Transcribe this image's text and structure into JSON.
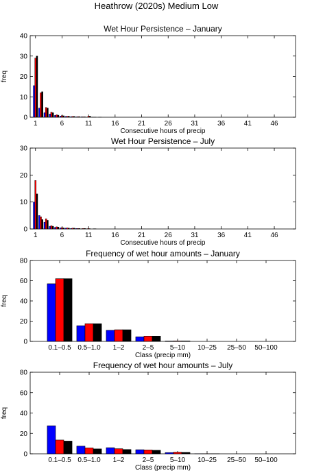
{
  "figure_title": "Heathrow (2020s) Medium Low",
  "chart_data": [
    {
      "type": "bar",
      "title": "Wet Hour Persistence – January",
      "xlabel": "Consecutive hours of precip",
      "ylabel": "freq",
      "xlim": [
        0,
        50
      ],
      "ylim": [
        0,
        40
      ],
      "xticks": [
        1,
        6,
        11,
        16,
        21,
        26,
        31,
        36,
        41,
        46
      ],
      "yticks": [
        0,
        10,
        20,
        30,
        40
      ],
      "colors": [
        "#0000ff",
        "#ff0000",
        "#000000"
      ],
      "x": [
        1,
        2,
        3,
        4,
        5,
        6,
        7,
        8,
        9,
        10,
        11,
        12,
        13
      ],
      "series": [
        {
          "values": [
            15.5,
            4.5,
            2.2,
            1.6,
            0.9,
            0.6,
            0.4,
            0.3,
            0.2,
            0.2,
            0.1,
            0.1,
            0
          ]
        },
        {
          "values": [
            29,
            12,
            4.8,
            2.5,
            1.2,
            0.8,
            0.5,
            0.4,
            0.3,
            0.2,
            0.6,
            0.1,
            0.1
          ]
        },
        {
          "values": [
            30,
            12.5,
            4.5,
            2.2,
            1.0,
            0.7,
            0.5,
            0.4,
            0.3,
            0.2,
            0.5,
            0.1,
            0.1
          ]
        }
      ]
    },
    {
      "type": "bar",
      "title": "Wet Hour Persistence – July",
      "xlabel": "Consecutive hours of precip",
      "ylabel": "",
      "xlim": [
        0,
        50
      ],
      "ylim": [
        0,
        30
      ],
      "xticks": [
        1,
        6,
        11,
        16,
        21,
        26,
        31,
        36,
        41,
        46
      ],
      "yticks": [
        0,
        10,
        20,
        30
      ],
      "colors": [
        "#0000ff",
        "#ff0000",
        "#000000"
      ],
      "x": [
        1,
        2,
        3,
        4,
        5,
        6,
        7,
        8,
        9,
        10,
        11,
        12
      ],
      "series": [
        {
          "values": [
            10,
            5,
            2.5,
            1.0,
            0.6,
            0.4,
            0.3,
            0.2,
            0.2,
            0.1,
            0.1,
            0
          ]
        },
        {
          "values": [
            18,
            4.5,
            3.8,
            1.2,
            0.8,
            0.5,
            0.4,
            0.3,
            0.2,
            0.2,
            0.2,
            0.1
          ]
        },
        {
          "values": [
            13,
            3.5,
            3.2,
            1.0,
            0.7,
            0.4,
            0.3,
            0.3,
            0.2,
            0.2,
            0.1,
            0.1
          ]
        }
      ]
    },
    {
      "type": "bar",
      "title": "Frequency of wet hour amounts – January",
      "xlabel": "Class (precip mm)",
      "ylabel": "freq",
      "ylim": [
        0,
        80
      ],
      "yticks": [
        0,
        20,
        40,
        60,
        80
      ],
      "colors": [
        "#0000ff",
        "#ff0000",
        "#000000"
      ],
      "categories": [
        "0.1–0.5",
        "0.5–1.0",
        "1–2",
        "2–5",
        "5–10",
        "10–25",
        "25–50",
        "50–100"
      ],
      "series": [
        {
          "values": [
            57,
            15.5,
            11,
            4.5,
            0.4,
            0,
            0,
            0
          ]
        },
        {
          "values": [
            62,
            17.5,
            11.5,
            5.2,
            0.5,
            0,
            0,
            0
          ]
        },
        {
          "values": [
            62,
            17.5,
            11.5,
            5.2,
            0.5,
            0,
            0,
            0
          ]
        }
      ]
    },
    {
      "type": "bar",
      "title": "Frequency of wet hour amounts – July",
      "xlabel": "Class (precip mm)",
      "ylabel": "freq",
      "ylim": [
        0,
        80
      ],
      "yticks": [
        0,
        20,
        40,
        60,
        80
      ],
      "colors": [
        "#0000ff",
        "#ff0000",
        "#000000"
      ],
      "categories": [
        "0.1–0.5",
        "0.5–1.0",
        "1–2",
        "2–5",
        "5–10",
        "10–25",
        "25–50",
        "50–100"
      ],
      "series": [
        {
          "values": [
            27.5,
            7.5,
            6,
            4,
            1.2,
            0.1,
            0,
            0
          ]
        },
        {
          "values": [
            13.5,
            5.8,
            5,
            3.8,
            1.6,
            0.1,
            0,
            0
          ]
        },
        {
          "values": [
            12.5,
            4.8,
            4.2,
            3.5,
            1.4,
            0.1,
            0,
            0
          ]
        }
      ]
    }
  ]
}
